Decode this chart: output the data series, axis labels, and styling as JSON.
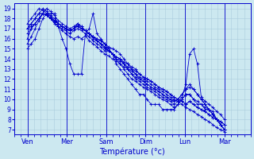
{
  "title": "",
  "xlabel": "Température (°c)",
  "ylabel": "",
  "background_color": "#cce8f0",
  "grid_color": "#aaccdd",
  "line_color": "#0000cc",
  "ylim": [
    6.5,
    19.5
  ],
  "yticks": [
    7,
    8,
    9,
    10,
    11,
    12,
    13,
    14,
    15,
    16,
    17,
    18,
    19
  ],
  "x_day_labels": [
    "Ven",
    "Mer",
    "Sam",
    "Dim",
    "Lun",
    "Mar"
  ],
  "x_day_positions": [
    8,
    32,
    56,
    80,
    104,
    128
  ],
  "xlim": [
    0,
    144
  ],
  "series": [
    [
      15.5,
      16.2,
      17.0,
      17.8,
      18.5,
      18.4,
      18.0,
      17.5,
      17.2,
      16.8,
      16.5,
      16.2,
      16.0,
      16.2,
      16.0,
      16.3,
      15.8,
      15.5,
      15.2,
      14.8,
      14.5,
      14.3,
      14.0,
      13.8,
      13.5,
      13.2,
      13.0,
      12.8,
      12.5,
      12.2,
      12.0,
      11.8,
      11.5,
      11.2,
      11.0,
      10.8,
      10.5,
      10.2,
      10.0,
      9.8,
      9.5,
      9.2,
      9.0,
      8.8,
      8.5,
      8.3,
      8.0,
      7.8,
      7.5,
      7.2,
      7.0,
      6.8
    ],
    [
      17.0,
      17.5,
      18.0,
      18.5,
      18.5,
      18.3,
      18.0,
      17.6,
      17.2,
      17.0,
      16.8,
      16.5,
      16.8,
      17.0,
      16.8,
      16.5,
      16.2,
      15.8,
      15.5,
      15.2,
      14.8,
      15.0,
      14.5,
      14.2,
      14.0,
      13.7,
      13.5,
      13.2,
      13.0,
      12.5,
      12.2,
      12.0,
      11.8,
      11.5,
      11.2,
      11.0,
      10.8,
      10.5,
      10.2,
      10.0,
      9.8,
      9.5,
      9.8,
      9.5,
      9.2,
      9.0,
      8.8,
      8.5,
      8.2,
      8.0,
      7.8,
      7.5
    ],
    [
      17.5,
      18.0,
      18.5,
      19.0,
      18.8,
      18.5,
      18.2,
      17.8,
      17.5,
      17.2,
      17.0,
      16.8,
      17.0,
      17.2,
      17.0,
      16.8,
      16.5,
      16.2,
      16.0,
      15.8,
      15.5,
      15.2,
      15.0,
      14.8,
      14.5,
      14.0,
      13.5,
      13.0,
      12.8,
      12.5,
      12.2,
      12.0,
      11.8,
      11.5,
      11.2,
      11.0,
      10.8,
      10.5,
      10.2,
      10.0,
      9.8,
      9.5,
      9.8,
      9.5,
      9.2,
      9.0,
      8.8,
      8.5,
      8.2,
      8.0,
      7.8,
      7.5
    ],
    [
      16.0,
      17.0,
      17.5,
      18.0,
      18.5,
      18.3,
      18.0,
      17.8,
      17.5,
      17.2,
      17.0,
      16.8,
      17.0,
      17.3,
      17.0,
      16.8,
      16.5,
      16.2,
      15.8,
      15.5,
      15.2,
      14.8,
      14.5,
      14.0,
      13.5,
      13.0,
      12.5,
      12.0,
      11.8,
      11.5,
      11.2,
      11.0,
      10.8,
      10.5,
      10.2,
      10.0,
      9.8,
      9.5,
      9.2,
      9.5,
      10.0,
      10.5,
      10.5,
      10.0,
      9.8,
      9.5,
      9.2,
      9.0,
      8.8,
      8.0,
      7.5,
      7.0
    ],
    [
      17.0,
      17.5,
      18.0,
      18.5,
      19.0,
      18.7,
      18.3,
      18.0,
      17.5,
      17.2,
      17.0,
      16.8,
      17.0,
      17.5,
      17.2,
      16.8,
      16.5,
      16.2,
      16.0,
      15.8,
      15.5,
      15.0,
      14.5,
      14.0,
      13.8,
      13.5,
      13.2,
      13.0,
      12.5,
      12.0,
      11.8,
      11.5,
      11.2,
      11.0,
      10.8,
      10.5,
      10.2,
      10.0,
      9.8,
      10.0,
      10.5,
      11.0,
      11.2,
      11.0,
      10.5,
      10.0,
      9.5,
      9.0,
      8.5,
      8.0,
      7.5,
      7.0
    ],
    [
      15.0,
      15.5,
      16.0,
      17.0,
      18.0,
      18.5,
      18.5,
      18.5,
      17.2,
      16.0,
      15.0,
      13.5,
      12.5,
      12.5,
      12.5,
      16.5,
      17.0,
      18.5,
      16.5,
      16.0,
      15.5,
      15.0,
      14.5,
      13.5,
      13.0,
      12.5,
      12.0,
      11.5,
      11.0,
      10.5,
      10.5,
      10.0,
      9.5,
      9.5,
      9.5,
      9.0,
      9.0,
      9.0,
      9.0,
      9.5,
      10.0,
      10.5,
      10.5,
      10.0,
      9.5,
      9.5,
      9.0,
      9.0,
      8.5,
      8.0,
      7.5,
      7.0
    ],
    [
      17.0,
      17.2,
      17.5,
      18.0,
      18.5,
      18.3,
      18.0,
      17.7,
      17.5,
      17.2,
      17.0,
      16.8,
      17.0,
      17.3,
      17.0,
      16.8,
      16.5,
      16.2,
      15.8,
      15.5,
      15.2,
      14.8,
      14.5,
      14.2,
      14.0,
      13.5,
      13.0,
      12.5,
      12.2,
      12.0,
      11.8,
      11.5,
      11.2,
      11.0,
      10.8,
      10.5,
      10.2,
      10.0,
      9.8,
      10.0,
      10.5,
      11.0,
      11.5,
      11.0,
      10.5,
      10.0,
      9.5,
      9.0,
      8.5,
      8.0,
      7.5,
      7.0
    ],
    [
      16.5,
      17.0,
      17.5,
      18.0,
      18.5,
      19.0,
      18.7,
      18.3,
      17.8,
      17.5,
      17.2,
      17.0,
      17.2,
      17.5,
      17.2,
      16.8,
      16.5,
      16.0,
      15.8,
      15.5,
      15.0,
      14.8,
      14.5,
      14.2,
      14.0,
      13.5,
      13.0,
      12.5,
      12.0,
      11.8,
      11.5,
      11.2,
      11.0,
      10.8,
      10.5,
      10.2,
      10.0,
      9.8,
      9.5,
      9.8,
      10.2,
      11.5,
      14.5,
      15.0,
      13.5,
      10.2,
      9.8,
      9.5,
      9.2,
      8.8,
      8.5,
      8.0
    ]
  ]
}
